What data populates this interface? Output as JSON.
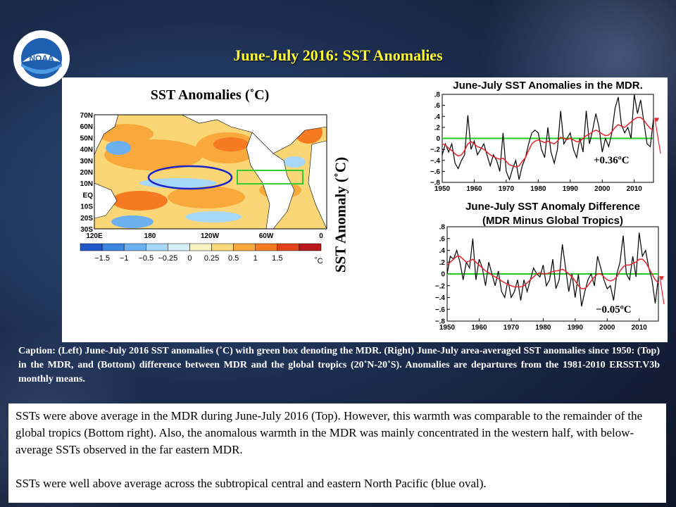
{
  "title": "June-July 2016: SST Anomalies",
  "logo": {
    "text": "NOAA",
    "ring_text": "NATIONAL OCEANIC AND ATMOSPHERIC ADMINISTRATION · U.S. DEPARTMENT OF COMMERCE"
  },
  "map": {
    "title": "SST Anomalies (˚C)",
    "lat_labels": [
      "70N",
      "60N",
      "50N",
      "40N",
      "30N",
      "20N",
      "10N",
      "EQ",
      "10S",
      "20S",
      "30S"
    ],
    "lon_labels": [
      "120E",
      "180",
      "120W",
      "60W",
      "0"
    ],
    "colorbar_labels": [
      "−1.5",
      "−1",
      "−0.5",
      "−0.25",
      "0",
      "0.25",
      "0.5",
      "1",
      "1.5"
    ],
    "colorbar_colors": [
      "#2158c8",
      "#3a86e0",
      "#6db0f0",
      "#a8d8f8",
      "#d8f0fb",
      "#fbf3c2",
      "#fad97a",
      "#f9a93c",
      "#f57a22",
      "#e2431b",
      "#b8181b"
    ],
    "unit": "˚C"
  },
  "y_axis_title": "SST Anomaly (˚C)",
  "chart_data": [
    {
      "type": "line",
      "title": "June-July SST Anomalies in the MDR.",
      "xlim": [
        1950,
        2016
      ],
      "ylim": [
        -0.8,
        0.8
      ],
      "xticks": [
        1950,
        1960,
        1970,
        1980,
        1990,
        2000,
        2010
      ],
      "yticks": [
        -0.8,
        -0.6,
        -0.4,
        -0.2,
        0,
        0.2,
        0.4,
        0.6,
        0.8
      ],
      "x": [
        1950,
        1951,
        1952,
        1953,
        1954,
        1955,
        1956,
        1957,
        1958,
        1959,
        1960,
        1961,
        1962,
        1963,
        1964,
        1965,
        1966,
        1967,
        1968,
        1969,
        1970,
        1971,
        1972,
        1973,
        1974,
        1975,
        1976,
        1977,
        1978,
        1979,
        1980,
        1981,
        1982,
        1983,
        1984,
        1985,
        1986,
        1987,
        1988,
        1989,
        1990,
        1991,
        1992,
        1993,
        1994,
        1995,
        1996,
        1997,
        1998,
        1999,
        2000,
        2001,
        2002,
        2003,
        2004,
        2005,
        2006,
        2007,
        2008,
        2009,
        2010,
        2011,
        2012,
        2013,
        2014,
        2015,
        2016
      ],
      "series": [
        {
          "values": [
            -0.3,
            -0.1,
            -0.25,
            -0.1,
            -0.45,
            -0.55,
            -0.4,
            -0.3,
            0.42,
            -0.2,
            -0.05,
            -0.3,
            -0.2,
            -0.1,
            -0.3,
            -0.5,
            -0.3,
            -0.4,
            -0.6,
            0.1,
            -0.6,
            -0.75,
            -0.55,
            -0.4,
            -0.75,
            -0.5,
            -0.35,
            -0.1,
            0.1,
            0.15,
            0.1,
            -0.2,
            -0.35,
            0.2,
            -0.25,
            -0.45,
            -0.2,
            0.5,
            -0.1,
            0.0,
            0.1,
            -0.2,
            -0.35,
            0.0,
            -0.25,
            0.5,
            -0.1,
            0.15,
            0.45,
            0.2,
            -0.25,
            0.0,
            -0.15,
            0.1,
            0.55,
            0.75,
            0.25,
            0.1,
            0.2,
            0.0,
            0.8,
            0.45,
            0.7,
            0.3,
            -0.1,
            -0.15,
            0.36
          ]
        },
        {
          "values": [
            -0.1,
            -0.12,
            -0.18,
            -0.22,
            -0.28,
            -0.32,
            -0.3,
            -0.22,
            -0.1,
            -0.06,
            -0.1,
            -0.15,
            -0.17,
            -0.2,
            -0.25,
            -0.3,
            -0.33,
            -0.36,
            -0.38,
            -0.36,
            -0.42,
            -0.48,
            -0.5,
            -0.52,
            -0.5,
            -0.42,
            -0.35,
            -0.22,
            -0.1,
            -0.05,
            -0.03,
            -0.05,
            -0.08,
            -0.05,
            -0.08,
            -0.1,
            -0.05,
            0.02,
            0.0,
            -0.02,
            0.0,
            -0.03,
            -0.06,
            -0.05,
            0.0,
            0.05,
            0.08,
            0.12,
            0.15,
            0.12,
            0.08,
            0.05,
            0.06,
            0.12,
            0.2,
            0.25,
            0.22,
            0.2,
            0.25,
            0.3,
            0.35,
            0.38,
            0.38,
            0.33,
            0.25,
            0.18,
            0.15
          ]
        }
      ],
      "reference_line": 0,
      "annotation": "+0.36ºC"
    },
    {
      "type": "line",
      "title": "June-July SST Anomaly Difference (MDR Minus Global Tropics)",
      "xlim": [
        1950,
        2016
      ],
      "ylim": [
        -0.8,
        0.8
      ],
      "xticks": [
        1950,
        1960,
        1970,
        1980,
        1990,
        2000,
        2010
      ],
      "yticks": [
        -0.8,
        -0.6,
        -0.4,
        -0.2,
        0,
        0.2,
        0.4,
        0.6,
        0.8
      ],
      "x": [
        1950,
        1951,
        1952,
        1953,
        1954,
        1955,
        1956,
        1957,
        1958,
        1959,
        1960,
        1961,
        1962,
        1963,
        1964,
        1965,
        1966,
        1967,
        1968,
        1969,
        1970,
        1971,
        1972,
        1973,
        1974,
        1975,
        1976,
        1977,
        1978,
        1979,
        1980,
        1981,
        1982,
        1983,
        1984,
        1985,
        1986,
        1987,
        1988,
        1989,
        1990,
        1991,
        1992,
        1993,
        1994,
        1995,
        1996,
        1997,
        1998,
        1999,
        2000,
        2001,
        2002,
        2003,
        2004,
        2005,
        2006,
        2007,
        2008,
        2009,
        2010,
        2011,
        2012,
        2013,
        2014,
        2015,
        2016
      ],
      "series": [
        {
          "values": [
            0.0,
            0.3,
            0.25,
            0.4,
            0.2,
            -0.1,
            0.2,
            0.1,
            0.6,
            -0.1,
            0.25,
            0.1,
            -0.2,
            0.2,
            0.0,
            -0.2,
            0.05,
            -0.3,
            -0.4,
            -0.1,
            -0.4,
            -0.3,
            -0.1,
            -0.45,
            -0.1,
            -0.3,
            -0.1,
            0.1,
            0.0,
            -0.05,
            0.15,
            -0.2,
            -0.1,
            0.25,
            -0.25,
            -0.1,
            0.5,
            0.1,
            -0.3,
            0.0,
            -0.4,
            0.0,
            -0.55,
            -0.3,
            -0.1,
            0.0,
            -0.2,
            0.3,
            0.1,
            -0.1,
            -0.25,
            -0.2,
            -0.45,
            0.0,
            0.2,
            0.65,
            0.0,
            -0.1,
            0.3,
            -0.05,
            0.7,
            0.3,
            0.4,
            0.1,
            -0.1,
            -0.5,
            -0.05
          ]
        },
        {
          "values": [
            0.15,
            0.2,
            0.25,
            0.3,
            0.3,
            0.25,
            0.2,
            0.22,
            0.25,
            0.2,
            0.15,
            0.1,
            0.05,
            0.02,
            -0.02,
            -0.05,
            -0.08,
            -0.12,
            -0.15,
            -0.18,
            -0.2,
            -0.22,
            -0.22,
            -0.22,
            -0.2,
            -0.15,
            -0.1,
            -0.05,
            0.0,
            0.02,
            0.0,
            0.0,
            0.02,
            0.04,
            0.05,
            0.06,
            0.08,
            0.05,
            0.0,
            -0.05,
            -0.12,
            -0.2,
            -0.25,
            -0.25,
            -0.2,
            -0.12,
            -0.05,
            0.0,
            0.0,
            -0.05,
            -0.1,
            -0.12,
            -0.1,
            -0.05,
            0.05,
            0.12,
            0.15,
            0.15,
            0.18,
            0.2,
            0.25,
            0.25,
            0.2,
            0.1,
            0.0,
            -0.1,
            -0.15
          ]
        }
      ],
      "reference_line": 0,
      "annotation": "−0.05ºC"
    }
  ],
  "caption": "Caption: (Left) June-July 2016 SST anomalies (˚C) with green box denoting the MDR. (Right) June-July area-averaged SST anomalies since 1950: (Top) in the MDR, and (Bottom) difference between MDR and the global tropics (20˚N-20˚S). Anomalies are departures from the 1981-2010 ERSST.V3b monthly means.",
  "summary": {
    "paragraph1": "SSTs were above average in the MDR during June-July 2016 (Top). However, this warmth was comparable to the remainder of the global tropics (Bottom right). Also, the anomalous warmth in the MDR was mainly concentrated in the western half, with below-average SSTs observed in the far eastern MDR.",
    "paragraph2": "SSTs were well above average across the subtropical central and eastern North Pacific (blue oval)."
  },
  "colors": {
    "title": "#ffff33",
    "obs_line": "#000000",
    "smooth_line": "#e8242a",
    "zero_line": "#22cc22",
    "mdr_box": "#33cc33",
    "oval": "#1a22c8"
  }
}
